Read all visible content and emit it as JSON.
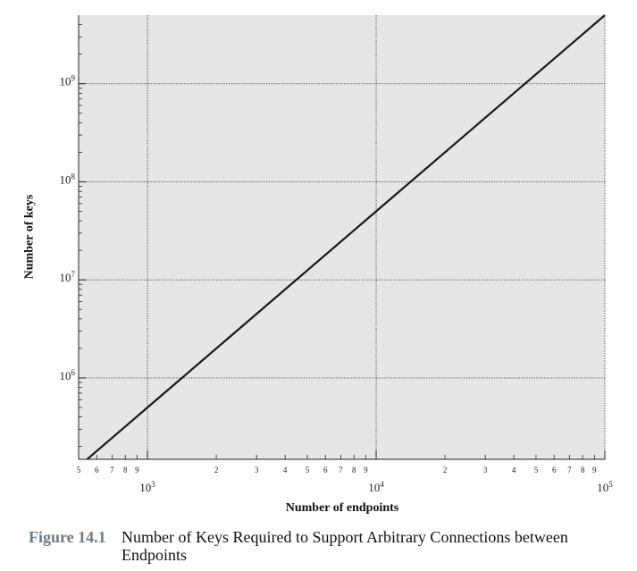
{
  "chart_data": {
    "type": "line",
    "xscale": "log",
    "yscale": "log",
    "xlabel": "Number of endpoints",
    "ylabel": "Number of keys",
    "xlim": [
      500,
      100000
    ],
    "ylim": [
      148000,
      5000000000
    ],
    "x_major_ticks": [
      {
        "value": 1000,
        "base": "10",
        "exp": "3"
      },
      {
        "value": 10000,
        "base": "10",
        "exp": "4"
      },
      {
        "value": 100000,
        "base": "10",
        "exp": "5"
      }
    ],
    "x_minor_ticks": [
      {
        "value": 500,
        "label": "5"
      },
      {
        "value": 600,
        "label": "6"
      },
      {
        "value": 700,
        "label": "7"
      },
      {
        "value": 800,
        "label": "8"
      },
      {
        "value": 900,
        "label": "9"
      },
      {
        "value": 2000,
        "label": "2"
      },
      {
        "value": 3000,
        "label": "3"
      },
      {
        "value": 4000,
        "label": "4"
      },
      {
        "value": 5000,
        "label": "5"
      },
      {
        "value": 6000,
        "label": "6"
      },
      {
        "value": 7000,
        "label": "7"
      },
      {
        "value": 8000,
        "label": "8"
      },
      {
        "value": 9000,
        "label": "9"
      },
      {
        "value": 20000,
        "label": "2"
      },
      {
        "value": 30000,
        "label": "3"
      },
      {
        "value": 40000,
        "label": "4"
      },
      {
        "value": 50000,
        "label": "5"
      },
      {
        "value": 60000,
        "label": "6"
      },
      {
        "value": 70000,
        "label": "7"
      },
      {
        "value": 80000,
        "label": "8"
      },
      {
        "value": 90000,
        "label": "9"
      }
    ],
    "y_major_ticks": [
      {
        "value": 1000000,
        "base": "10",
        "exp": "6"
      },
      {
        "value": 10000000,
        "base": "10",
        "exp": "7"
      },
      {
        "value": 100000000,
        "base": "10",
        "exp": "8"
      },
      {
        "value": 1000000000,
        "base": "10",
        "exp": "9"
      }
    ],
    "grid": "dotted lines at major ticks",
    "series": [
      {
        "x": [
          500,
          1000,
          10000,
          100000
        ],
        "y": [
          124750,
          499500,
          49995000,
          4999950000
        ]
      }
    ],
    "colors": {
      "plot_background": "#e6e6e6",
      "line": "#1a1a1a",
      "grid": "#333333"
    }
  },
  "caption": {
    "label": "Figure 14.1",
    "text": "Number of Keys Required to Support Arbitrary Connections between Endpoints"
  }
}
